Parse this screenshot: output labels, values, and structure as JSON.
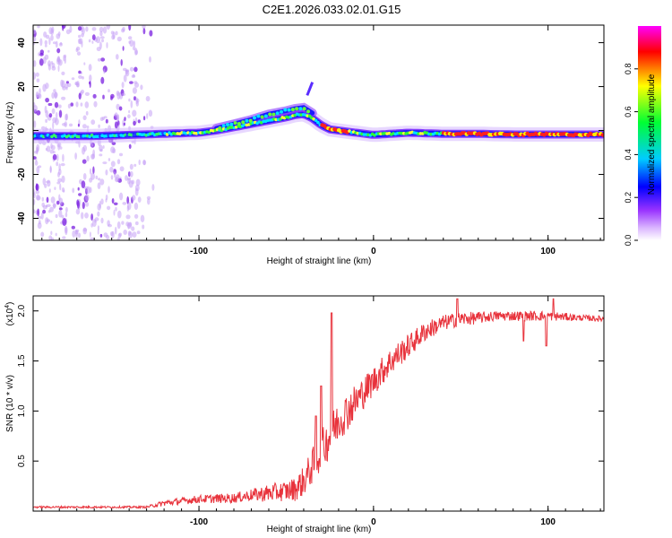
{
  "figure": {
    "title": "C2E1.2026.033.02.01.G15"
  },
  "chart_data": [
    {
      "type": "heatmap",
      "panel": "spectrogram",
      "title": "C2E1.2026.033.02.01.G15",
      "xlabel": "Height of straight line (km)",
      "ylabel": "Frequency (Hz)",
      "xlim": [
        -195,
        132
      ],
      "ylim": [
        -50,
        48
      ],
      "xticks": [
        -100,
        0,
        100
      ],
      "xtick_labels": [
        "-100",
        "0",
        "100"
      ],
      "yticks": [
        -40,
        -20,
        0,
        20,
        40
      ],
      "ytick_labels": [
        "-40",
        "-20",
        "0",
        "20",
        "40"
      ],
      "ridge": {
        "x": [
          -195,
          -160,
          -140,
          -120,
          -100,
          -90,
          -80,
          -70,
          -60,
          -50,
          -45,
          -40,
          -35,
          -30,
          -25,
          -20,
          -15,
          -10,
          -5,
          0,
          10,
          20,
          40,
          60,
          80,
          100,
          120,
          132
        ],
        "freq": [
          -2.5,
          -2.5,
          -2.0,
          -1.5,
          -1.0,
          0.0,
          1.5,
          3.0,
          4.5,
          6.0,
          7.0,
          7.5,
          5.5,
          2.5,
          0.5,
          0.0,
          -0.5,
          -1.0,
          -1.5,
          -2.0,
          -1.5,
          -1.0,
          -1.5,
          -1.5,
          -1.8,
          -1.8,
          -1.8,
          -1.8
        ]
      },
      "upper_branch": {
        "x": [
          -90,
          -80,
          -70,
          -60,
          -50,
          -45,
          -40,
          -35
        ],
        "freq": [
          1.0,
          3.0,
          5.0,
          7.5,
          9.0,
          10.0,
          10.5,
          8.0
        ]
      },
      "saturated_segments": [
        [
          -30,
          -15
        ],
        [
          40,
          132
        ]
      ],
      "scatter_region": [
        -195,
        -125
      ],
      "colorbar": {
        "label": "Normalized spectral amplitude",
        "range": [
          0,
          1
        ],
        "ticks": [
          0.0,
          0.2,
          0.4,
          0.6,
          0.8
        ],
        "tick_labels": [
          "0.0",
          "0.2",
          "0.4",
          "0.6",
          "0.8"
        ],
        "colors": [
          "#ffffff",
          "#9933ff",
          "#0000ff",
          "#00ccff",
          "#00ff33",
          "#ffff00",
          "#ff0000",
          "#ff00ff"
        ]
      }
    },
    {
      "type": "line",
      "panel": "snr",
      "xlabel": "Height of straight line (km)",
      "ylabel": "SNR (10 * v/v)",
      "ylabel_scale": "(x10",
      "ylabel_exponent": "4",
      "ylabel_scale_close": ")",
      "xlim": [
        -195,
        132
      ],
      "ylim": [
        0,
        2.15
      ],
      "xticks": [
        -100,
        0,
        100
      ],
      "xtick_labels": [
        "-100",
        "0",
        "100"
      ],
      "yticks": [
        0.5,
        1.0,
        1.5,
        2.0
      ],
      "ytick_labels": [
        "0.5",
        "1.0",
        "1.5",
        "2.0"
      ],
      "color": "#e8333c",
      "series": {
        "name": "SNR",
        "x": [
          -195,
          -160,
          -130,
          -120,
          -100,
          -80,
          -70,
          -60,
          -50,
          -45,
          -40,
          -35,
          -30,
          -25,
          -20,
          -15,
          -10,
          -5,
          0,
          10,
          20,
          30,
          40,
          50,
          60,
          70,
          80,
          90,
          100,
          110,
          120,
          132
        ],
        "mean": [
          0.04,
          0.04,
          0.04,
          0.08,
          0.12,
          0.13,
          0.16,
          0.18,
          0.2,
          0.22,
          0.3,
          0.45,
          0.6,
          0.75,
          0.9,
          1.0,
          1.1,
          1.2,
          1.3,
          1.5,
          1.65,
          1.8,
          1.88,
          1.92,
          1.93,
          1.95,
          1.95,
          1.95,
          1.95,
          1.94,
          1.93,
          1.92
        ],
        "amp": [
          0.01,
          0.01,
          0.01,
          0.03,
          0.04,
          0.05,
          0.06,
          0.09,
          0.1,
          0.12,
          0.15,
          0.18,
          0.2,
          0.22,
          0.2,
          0.2,
          0.18,
          0.16,
          0.15,
          0.14,
          0.12,
          0.1,
          0.08,
          0.07,
          0.06,
          0.05,
          0.05,
          0.05,
          0.05,
          0.04,
          0.03,
          0.03
        ]
      },
      "spikes": [
        {
          "x": -24,
          "y": 1.98
        },
        {
          "x": -30,
          "y": 1.25
        },
        {
          "x": -33,
          "y": 0.95
        },
        {
          "x": 48,
          "y": 2.12
        },
        {
          "x": 103,
          "y": 2.12
        },
        {
          "x": 86,
          "y": 1.7
        },
        {
          "x": 99,
          "y": 1.65
        }
      ]
    }
  ]
}
